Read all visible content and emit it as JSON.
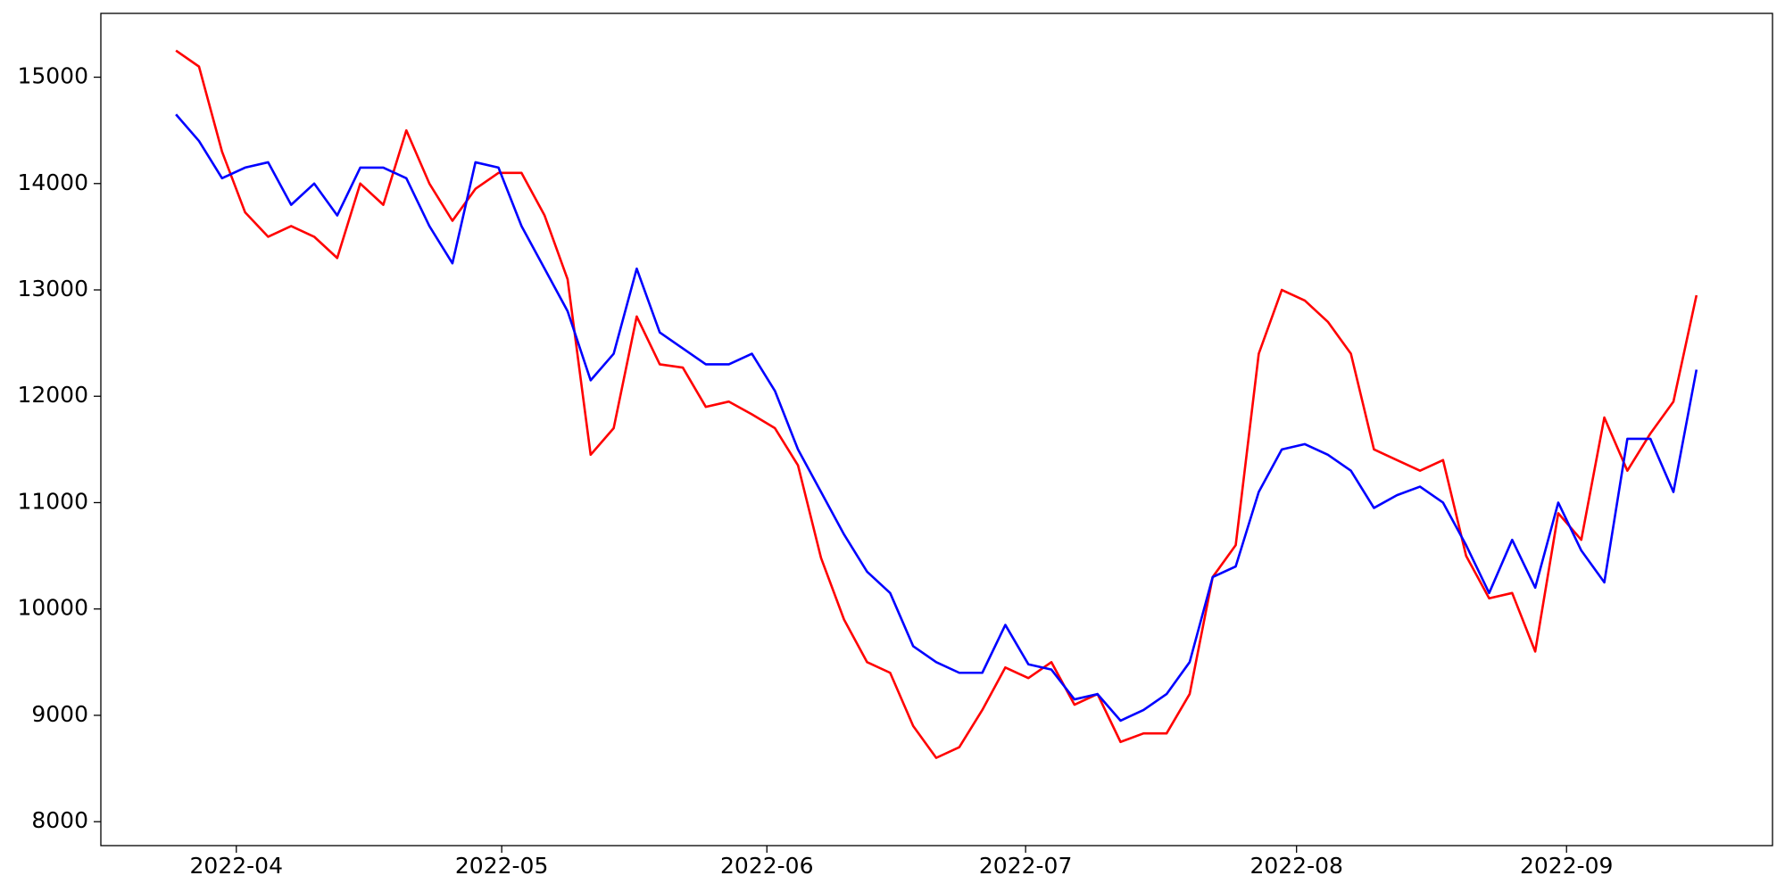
{
  "chart_data": {
    "type": "line",
    "xlim": [
      -3.26,
      69.3
    ],
    "xticks": [
      {
        "value": 2.62,
        "label": "2022-04"
      },
      {
        "value": 14.14,
        "label": "2022-05"
      },
      {
        "value": 25.65,
        "label": "2022-06"
      },
      {
        "value": 36.88,
        "label": "2022-07"
      },
      {
        "value": 48.64,
        "label": "2022-08"
      },
      {
        "value": 60.36,
        "label": "2022-09"
      }
    ],
    "ylim": [
      7775,
      15600
    ],
    "yticks": [
      8000,
      9000,
      10000,
      11000,
      12000,
      13000,
      14000,
      15000
    ],
    "grid": false,
    "series": [
      {
        "color": "#ff0000",
        "values": [
          15250,
          15100,
          14300,
          13730,
          13500,
          13600,
          13500,
          13300,
          14000,
          13800,
          14500,
          14000,
          13650,
          13950,
          14100,
          14100,
          13700,
          13100,
          11450,
          11700,
          12750,
          12300,
          12270,
          11900,
          11950,
          11830,
          11700,
          11350,
          10480,
          9900,
          9500,
          9400,
          8900,
          8600,
          8700,
          9050,
          9450,
          9350,
          9500,
          9100,
          9200,
          8750,
          8830,
          8830,
          9200,
          10300,
          10600,
          12400,
          13000,
          12900,
          12700,
          12400,
          11500,
          11400,
          11300,
          11400,
          10500,
          10100,
          10150,
          9600,
          10900,
          10650,
          11800,
          11300,
          11650,
          11950,
          12950
        ]
      },
      {
        "color": "#0000ff",
        "values": [
          14650,
          14400,
          14050,
          14150,
          14200,
          13800,
          14000,
          13700,
          14150,
          14150,
          14050,
          13600,
          13250,
          14200,
          14150,
          13600,
          13200,
          12800,
          12150,
          12400,
          13200,
          12600,
          12450,
          12300,
          12300,
          12400,
          12050,
          11500,
          11100,
          10700,
          10350,
          10150,
          9650,
          9500,
          9400,
          9400,
          9850,
          9480,
          9430,
          9150,
          9200,
          8950,
          9050,
          9200,
          9500,
          10300,
          10400,
          11100,
          11500,
          11550,
          11450,
          11300,
          10950,
          11070,
          11150,
          11000,
          10600,
          10150,
          10650,
          10200,
          11000,
          10550,
          10250,
          11600,
          11600,
          11100,
          12250
        ]
      }
    ]
  }
}
